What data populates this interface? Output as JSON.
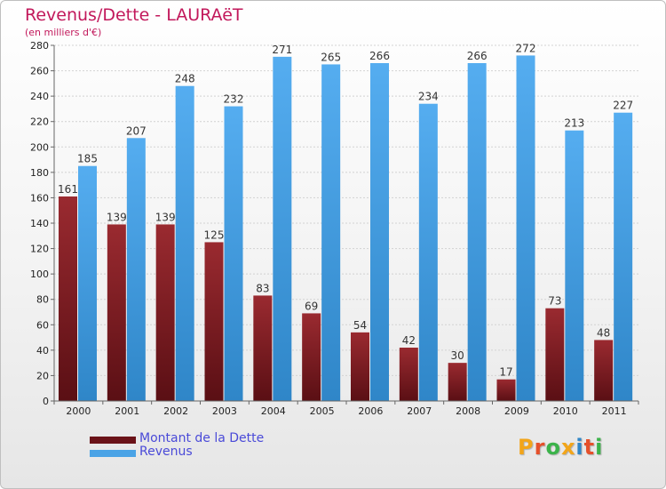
{
  "title": "Revenus/Dette - LAURAëT",
  "subtitle": "(en milliers d'€)",
  "logo_text": "Proxiti",
  "colors": {
    "debt": "#7a1f24",
    "revenue": "#4aa3e6",
    "title": "#c2185b",
    "legend_text": "#4a4ad8"
  },
  "chart_data": {
    "type": "bar",
    "categories": [
      "2000",
      "2001",
      "2002",
      "2003",
      "2004",
      "2005",
      "2006",
      "2007",
      "2008",
      "2009",
      "2010",
      "2011"
    ],
    "series": [
      {
        "name": "Montant de la Dette",
        "values": [
          161,
          139,
          139,
          125,
          83,
          69,
          54,
          42,
          30,
          17,
          73,
          48
        ]
      },
      {
        "name": "Revenus",
        "values": [
          185,
          207,
          248,
          232,
          271,
          265,
          266,
          234,
          266,
          272,
          213,
          227
        ]
      }
    ],
    "ylim": [
      0,
      280
    ],
    "yticks": [
      0,
      20,
      40,
      60,
      80,
      100,
      120,
      140,
      160,
      180,
      200,
      220,
      240,
      260,
      280
    ],
    "grid": true,
    "legend_position": "bottom-left"
  }
}
